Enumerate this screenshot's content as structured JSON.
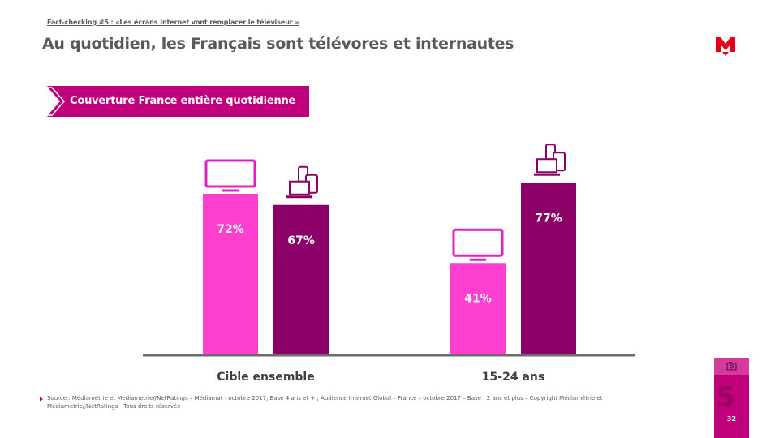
{
  "header": {
    "kicker": "Fact-checking #5 : «Les écrans Internet vont remplacer le téléviseur »",
    "title": "Au quotidien, les Français sont télévores et internautes",
    "banner": "Couverture France entière quotidienne"
  },
  "icons": [
    "tv-icon",
    "multiscreen-icon",
    "media-logo-icon",
    "camera-icon"
  ],
  "colors": {
    "tv": "#ff3fcf",
    "internet": "#8b0066",
    "accent": "#c0007a",
    "axis": "#6b6b6b"
  },
  "chart_data": {
    "type": "bar",
    "categories": [
      "Cible ensemble",
      "15-24 ans"
    ],
    "series": [
      {
        "values": [
          72,
          41
        ],
        "labels": [
          "72%",
          "41%"
        ]
      },
      {
        "values": [
          67,
          77
        ],
        "labels": [
          "67%",
          "77%"
        ]
      }
    ],
    "ylim": [
      0,
      100
    ],
    "grid": false,
    "legend": "none"
  },
  "footer": {
    "source": "Source : Médiamétrie et Mediametrie//NetRatings – Médiamat - octobre 2017, Base 4 ans et + ; Audience Internet Global – France – octobre 2017 – Base : 2 ans et plus – Copyright Médiamétrie et Mediametrie//NetRatings - Tous droits réservés",
    "section_number": "5",
    "page_number": "32"
  }
}
